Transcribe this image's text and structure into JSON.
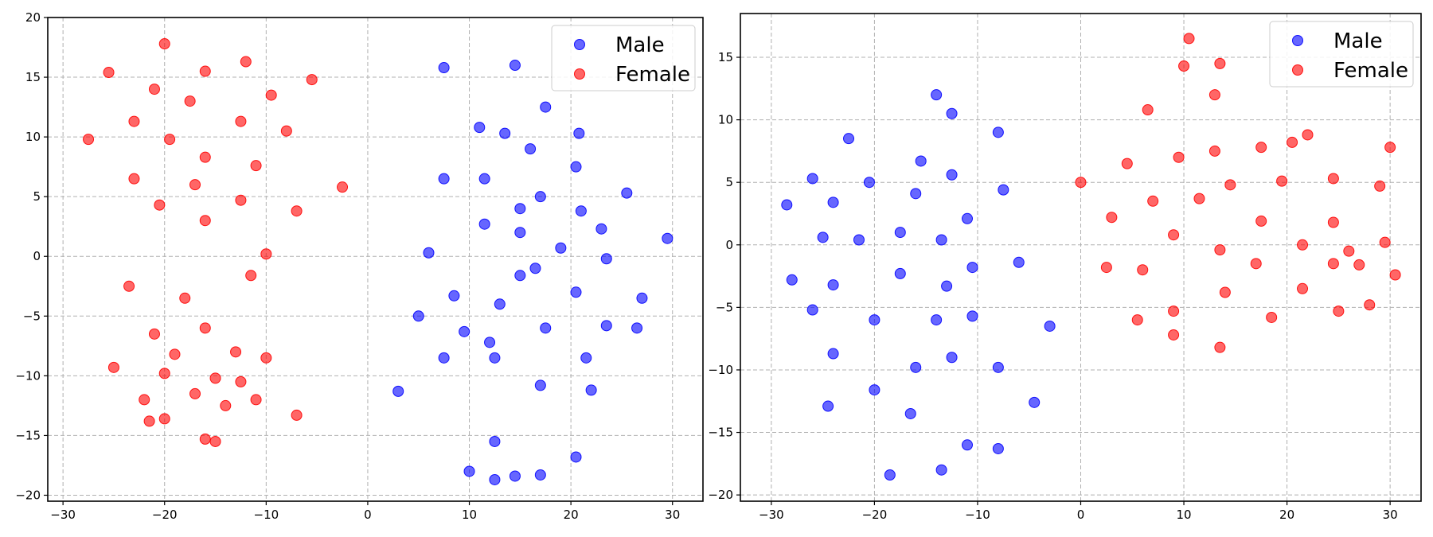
{
  "chart_data": [
    {
      "type": "scatter",
      "title": "",
      "xlabel": "",
      "ylabel": "",
      "xlim": [
        -31.5,
        33
      ],
      "ylim": [
        -20.5,
        20
      ],
      "xticks": [
        -30,
        -20,
        -10,
        0,
        10,
        20,
        30
      ],
      "yticks": [
        -20,
        -15,
        -10,
        -5,
        0,
        5,
        10,
        15,
        20
      ],
      "xtick_labels": [
        "−30",
        "−20",
        "−10",
        "0",
        "10",
        "20",
        "30"
      ],
      "ytick_labels": [
        "−20",
        "−15",
        "−10",
        "−5",
        "0",
        "5",
        "10",
        "15",
        "20"
      ],
      "grid": true,
      "legend_position": "top-right",
      "series": [
        {
          "name": "Male",
          "color": "#0000ff",
          "points": [
            [
              7.5,
              15.8
            ],
            [
              14.5,
              16.0
            ],
            [
              17.5,
              12.5
            ],
            [
              11.0,
              10.8
            ],
            [
              13.5,
              10.3
            ],
            [
              16.0,
              9.0
            ],
            [
              20.8,
              10.3
            ],
            [
              7.5,
              6.5
            ],
            [
              11.5,
              6.5
            ],
            [
              17.0,
              5.0
            ],
            [
              20.5,
              7.5
            ],
            [
              25.5,
              5.3
            ],
            [
              15.0,
              4.0
            ],
            [
              11.5,
              2.7
            ],
            [
              15.0,
              2.0
            ],
            [
              21.0,
              3.8
            ],
            [
              23.0,
              2.3
            ],
            [
              6.0,
              0.3
            ],
            [
              16.5,
              -1.0
            ],
            [
              19.0,
              0.7
            ],
            [
              23.5,
              -0.2
            ],
            [
              29.5,
              1.5
            ],
            [
              15.0,
              -1.6
            ],
            [
              8.5,
              -3.3
            ],
            [
              13.0,
              -4.0
            ],
            [
              20.5,
              -3.0
            ],
            [
              27.0,
              -3.5
            ],
            [
              5.0,
              -5.0
            ],
            [
              9.5,
              -6.3
            ],
            [
              12.0,
              -7.2
            ],
            [
              17.5,
              -6.0
            ],
            [
              23.5,
              -5.8
            ],
            [
              26.5,
              -6.0
            ],
            [
              7.5,
              -8.5
            ],
            [
              12.5,
              -8.5
            ],
            [
              21.5,
              -8.5
            ],
            [
              3.0,
              -11.3
            ],
            [
              17.0,
              -10.8
            ],
            [
              22.0,
              -11.2
            ],
            [
              10.0,
              -18.0
            ],
            [
              12.5,
              -18.7
            ],
            [
              12.5,
              -15.5
            ],
            [
              17.0,
              -18.3
            ],
            [
              20.5,
              -16.8
            ],
            [
              14.5,
              -18.4
            ]
          ]
        },
        {
          "name": "Female",
          "color": "#ff0000",
          "points": [
            [
              -20.0,
              17.8
            ],
            [
              -12.0,
              16.3
            ],
            [
              -16.0,
              15.5
            ],
            [
              -25.5,
              15.4
            ],
            [
              -5.5,
              14.8
            ],
            [
              -21.0,
              14.0
            ],
            [
              -17.5,
              13.0
            ],
            [
              -9.5,
              13.5
            ],
            [
              -23.0,
              11.3
            ],
            [
              -12.5,
              11.3
            ],
            [
              -8.0,
              10.5
            ],
            [
              -27.5,
              9.8
            ],
            [
              -19.5,
              9.8
            ],
            [
              -16.0,
              8.3
            ],
            [
              -11.0,
              7.6
            ],
            [
              -23.0,
              6.5
            ],
            [
              -17.0,
              6.0
            ],
            [
              -2.5,
              5.8
            ],
            [
              -20.5,
              4.3
            ],
            [
              -12.5,
              4.7
            ],
            [
              -7.0,
              3.8
            ],
            [
              -16.0,
              3.0
            ],
            [
              -10.0,
              0.2
            ],
            [
              -23.5,
              -2.5
            ],
            [
              -11.5,
              -1.6
            ],
            [
              -18.0,
              -3.5
            ],
            [
              -21.0,
              -6.5
            ],
            [
              -16.0,
              -6.0
            ],
            [
              -25.0,
              -9.3
            ],
            [
              -19.0,
              -8.2
            ],
            [
              -13.0,
              -8.0
            ],
            [
              -10.0,
              -8.5
            ],
            [
              -20.0,
              -9.8
            ],
            [
              -15.0,
              -10.2
            ],
            [
              -22.0,
              -12.0
            ],
            [
              -17.0,
              -11.5
            ],
            [
              -12.5,
              -10.5
            ],
            [
              -11.0,
              -12.0
            ],
            [
              -14.0,
              -12.5
            ],
            [
              -21.5,
              -13.8
            ],
            [
              -20.0,
              -13.6
            ],
            [
              -16.0,
              -15.3
            ],
            [
              -15.0,
              -15.5
            ],
            [
              -7.0,
              -13.3
            ]
          ]
        }
      ]
    },
    {
      "type": "scatter",
      "title": "",
      "xlabel": "",
      "ylabel": "",
      "xlim": [
        -33,
        33
      ],
      "ylim": [
        -20.5,
        18.5
      ],
      "xticks": [
        -30,
        -20,
        -10,
        0,
        10,
        20,
        30
      ],
      "yticks": [
        -20,
        -15,
        -10,
        -5,
        0,
        5,
        10,
        15
      ],
      "xtick_labels": [
        "−30",
        "−20",
        "−10",
        "0",
        "10",
        "20",
        "30"
      ],
      "ytick_labels": [
        "−20",
        "−15",
        "−10",
        "−5",
        "0",
        "5",
        "10",
        "15"
      ],
      "grid": true,
      "legend_position": "top-right",
      "series": [
        {
          "name": "Male",
          "color": "#0000ff",
          "points": [
            [
              -14.0,
              12.0
            ],
            [
              -12.5,
              10.5
            ],
            [
              -8.0,
              9.0
            ],
            [
              -22.5,
              8.5
            ],
            [
              -26.0,
              5.3
            ],
            [
              -20.5,
              5.0
            ],
            [
              -15.5,
              6.7
            ],
            [
              -12.5,
              5.6
            ],
            [
              -7.5,
              4.4
            ],
            [
              -16.0,
              4.1
            ],
            [
              -11.0,
              2.1
            ],
            [
              -24.0,
              3.4
            ],
            [
              -28.5,
              3.2
            ],
            [
              -25.0,
              0.6
            ],
            [
              -21.5,
              0.4
            ],
            [
              -17.5,
              1.0
            ],
            [
              -13.5,
              0.4
            ],
            [
              -6.0,
              -1.4
            ],
            [
              -10.5,
              -1.8
            ],
            [
              -17.5,
              -2.3
            ],
            [
              -28.0,
              -2.8
            ],
            [
              -24.0,
              -3.2
            ],
            [
              -13.0,
              -3.3
            ],
            [
              -26.0,
              -5.2
            ],
            [
              -20.0,
              -6.0
            ],
            [
              -14.0,
              -6.0
            ],
            [
              -10.5,
              -5.7
            ],
            [
              -3.0,
              -6.5
            ],
            [
              -24.0,
              -8.7
            ],
            [
              -12.5,
              -9.0
            ],
            [
              -16.0,
              -9.8
            ],
            [
              -8.0,
              -9.8
            ],
            [
              -20.0,
              -11.6
            ],
            [
              -4.5,
              -12.6
            ],
            [
              -24.5,
              -12.9
            ],
            [
              -16.5,
              -13.5
            ],
            [
              -11.0,
              -16.0
            ],
            [
              -8.0,
              -16.3
            ],
            [
              -18.5,
              -18.4
            ],
            [
              -13.5,
              -18.0
            ]
          ]
        },
        {
          "name": "Female",
          "color": "#ff0000",
          "points": [
            [
              10.5,
              16.5
            ],
            [
              13.5,
              14.5
            ],
            [
              10.0,
              14.3
            ],
            [
              13.0,
              12.0
            ],
            [
              6.5,
              10.8
            ],
            [
              20.5,
              8.2
            ],
            [
              22.0,
              8.8
            ],
            [
              30.0,
              7.8
            ],
            [
              13.0,
              7.5
            ],
            [
              9.5,
              7.0
            ],
            [
              4.5,
              6.5
            ],
            [
              17.5,
              7.8
            ],
            [
              0.0,
              5.0
            ],
            [
              14.5,
              4.8
            ],
            [
              19.5,
              5.1
            ],
            [
              24.5,
              5.3
            ],
            [
              29.0,
              4.7
            ],
            [
              11.5,
              3.7
            ],
            [
              7.0,
              3.5
            ],
            [
              3.0,
              2.2
            ],
            [
              17.5,
              1.9
            ],
            [
              24.5,
              1.8
            ],
            [
              9.0,
              0.8
            ],
            [
              21.5,
              0.0
            ],
            [
              26.0,
              -0.5
            ],
            [
              29.5,
              0.2
            ],
            [
              13.5,
              -0.4
            ],
            [
              2.5,
              -1.8
            ],
            [
              6.0,
              -2.0
            ],
            [
              17.0,
              -1.5
            ],
            [
              24.5,
              -1.5
            ],
            [
              27.0,
              -1.6
            ],
            [
              30.5,
              -2.4
            ],
            [
              14.0,
              -3.8
            ],
            [
              21.5,
              -3.5
            ],
            [
              9.0,
              -5.3
            ],
            [
              5.5,
              -6.0
            ],
            [
              18.5,
              -5.8
            ],
            [
              25.0,
              -5.3
            ],
            [
              28.0,
              -4.8
            ],
            [
              9.0,
              -7.2
            ],
            [
              13.5,
              -8.2
            ]
          ]
        }
      ]
    }
  ]
}
